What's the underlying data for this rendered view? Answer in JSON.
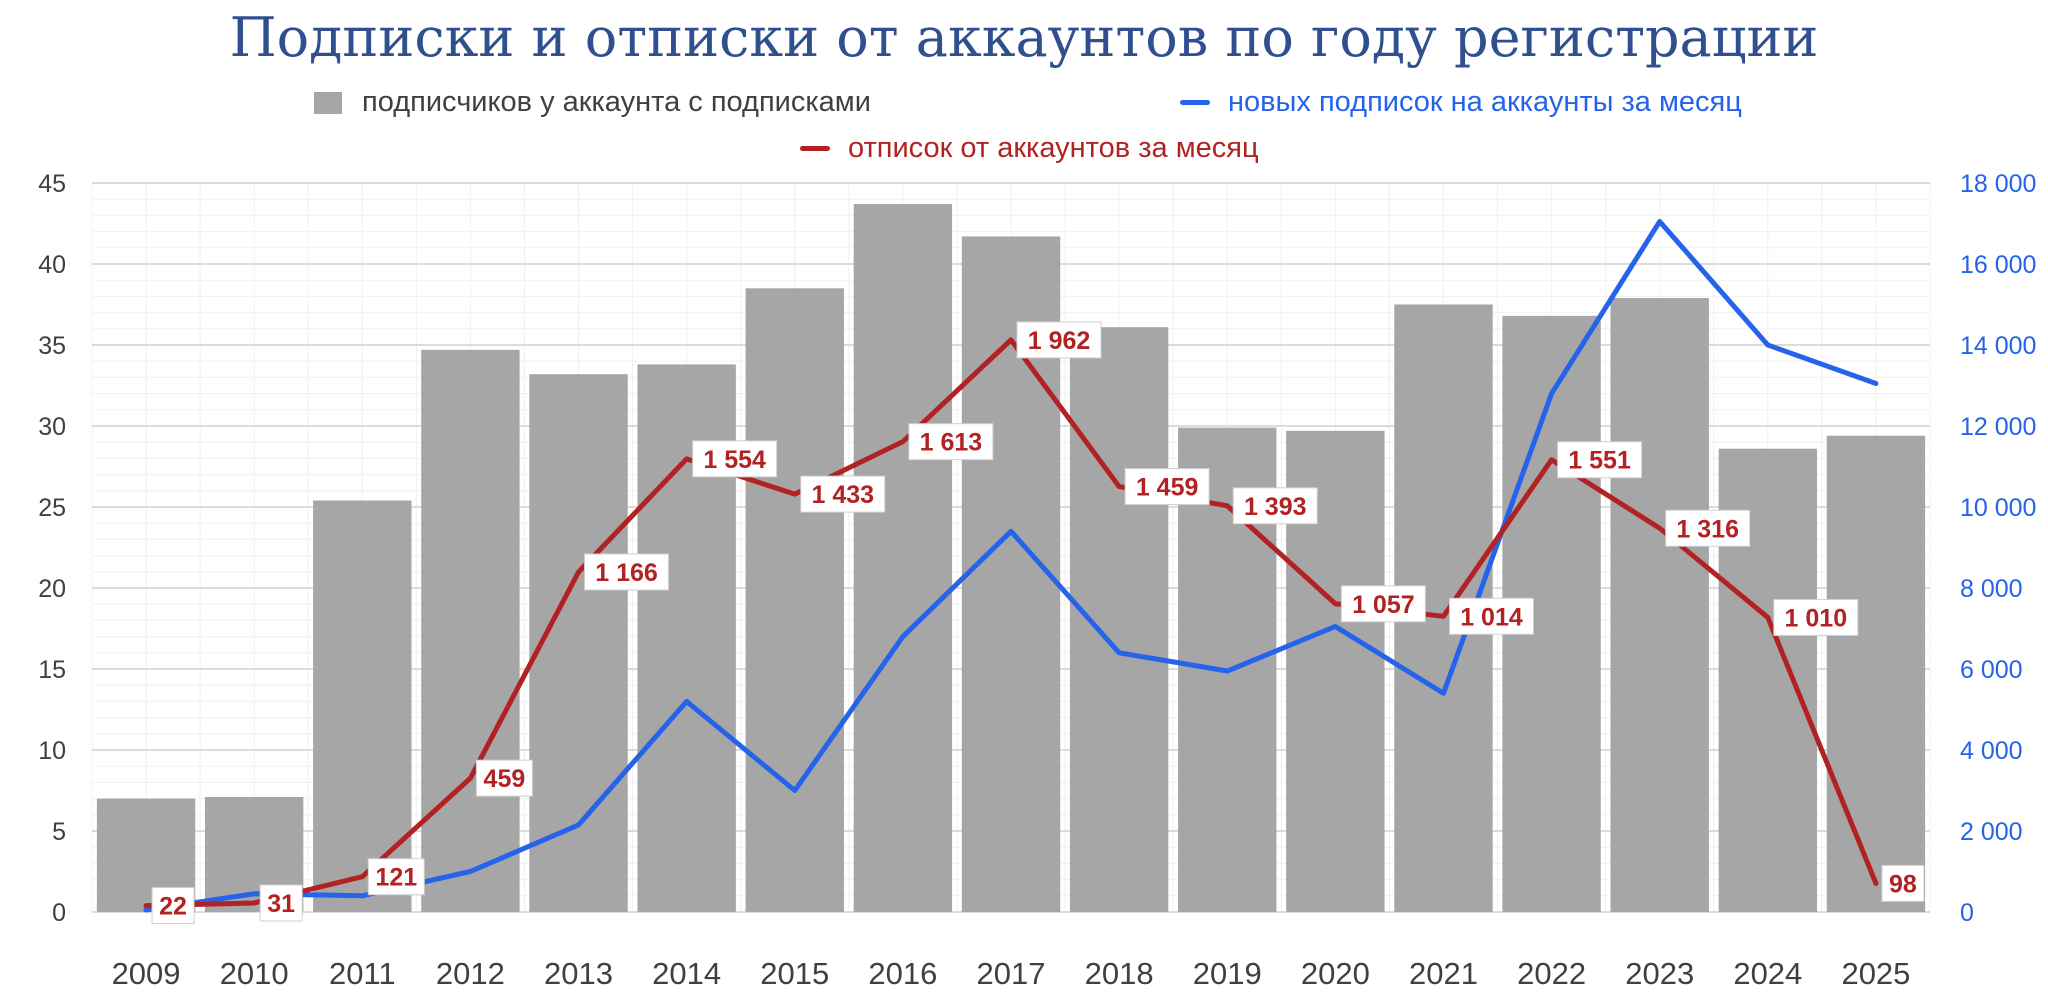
{
  "chart_data": {
    "type": "bar",
    "title": "Подписки и отписки от аккаунтов по году регистрации",
    "categories": [
      "2009",
      "2010",
      "2011",
      "2012",
      "2013",
      "2014",
      "2015",
      "2016",
      "2017",
      "2018",
      "2019",
      "2020",
      "2021",
      "2022",
      "2023",
      "2024",
      "2025"
    ],
    "series": [
      {
        "name": "подписчиков у аккаунта с подписками",
        "type": "bar",
        "axis": "left",
        "color": "#a6a6a6",
        "values": [
          7.0,
          7.1,
          25.4,
          34.7,
          33.2,
          33.8,
          38.5,
          43.7,
          41.7,
          36.1,
          29.9,
          29.7,
          37.5,
          36.8,
          37.9,
          28.6,
          29.4
        ]
      },
      {
        "name": "новых подписок на аккаунты за месяц",
        "type": "line",
        "axis": "right",
        "color": "#2563eb",
        "values": [
          50,
          450,
          400,
          1000,
          2150,
          5200,
          3000,
          6800,
          9400,
          6400,
          5950,
          7050,
          5400,
          12800,
          17050,
          14000,
          13050
        ]
      },
      {
        "name": "отписок от аккаунтов за месяц",
        "type": "line",
        "axis": "right",
        "color": "#b22222",
        "values": [
          22,
          31,
          121,
          459,
          1166,
          1554,
          1433,
          1613,
          1962,
          1459,
          1393,
          1057,
          1014,
          1551,
          1316,
          1010,
          98
        ],
        "labels": [
          "22",
          "31",
          "121",
          "459",
          "1 166",
          "1 554",
          "1 433",
          "1 613",
          "1 962",
          "1 459",
          "1 393",
          "1 057",
          "1 014",
          "1 551",
          "1 316",
          "1 010",
          "98"
        ]
      }
    ],
    "y_left": {
      "min": 0,
      "max": 45,
      "ticks": [
        "0",
        "5",
        "10",
        "15",
        "20",
        "25",
        "30",
        "35",
        "40",
        "45"
      ]
    },
    "y_right": {
      "min": 0,
      "max": 18000,
      "ticks": [
        "0",
        "2 000",
        "4 000",
        "6 000",
        "8 000",
        "10 000",
        "12 000",
        "14 000",
        "16 000",
        "18 000"
      ]
    },
    "unsub_line_scale": {
      "min": 0,
      "max": 2500
    },
    "grid": true,
    "legend_position": "top"
  }
}
